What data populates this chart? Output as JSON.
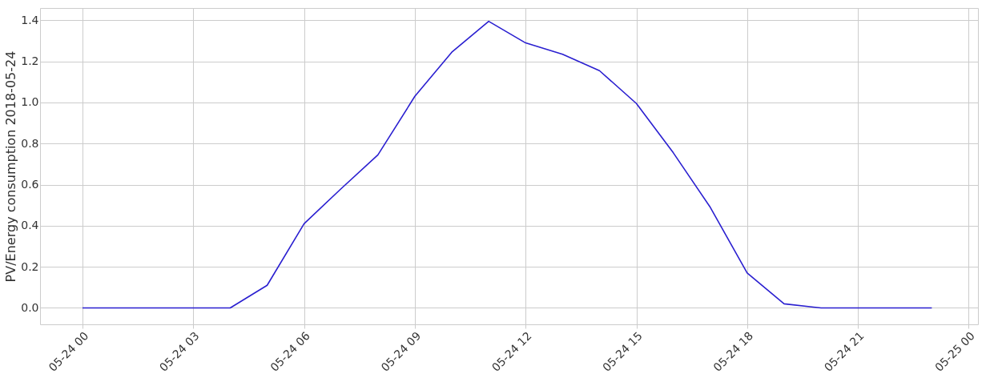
{
  "chart_data": {
    "type": "line",
    "ylabel": "PV/Energy consumption 2018-05-24",
    "x": [
      "2018-05-24T00:00",
      "2018-05-24T01:00",
      "2018-05-24T02:00",
      "2018-05-24T03:00",
      "2018-05-24T04:00",
      "2018-05-24T05:00",
      "2018-05-24T06:00",
      "2018-05-24T07:00",
      "2018-05-24T08:00",
      "2018-05-24T09:00",
      "2018-05-24T10:00",
      "2018-05-24T11:00",
      "2018-05-24T12:00",
      "2018-05-24T13:00",
      "2018-05-24T14:00",
      "2018-05-24T15:00",
      "2018-05-24T16:00",
      "2018-05-24T17:00",
      "2018-05-24T18:00",
      "2018-05-24T19:00",
      "2018-05-24T20:00",
      "2018-05-24T21:00",
      "2018-05-24T22:00",
      "2018-05-24T23:00"
    ],
    "series": [
      {
        "color": "#2a1fd0",
        "values": [
          0,
          0,
          0,
          0,
          0,
          0.11,
          0.41,
          0.58,
          0.745,
          1.03,
          1.245,
          1.395,
          1.29,
          1.235,
          1.155,
          0.995,
          0.755,
          0.49,
          0.17,
          0.02,
          0,
          0,
          0,
          0
        ]
      }
    ],
    "xlim": [
      "2018-05-23T22:51",
      "2018-05-25T00:15"
    ],
    "xticks": [
      {
        "value": "2018-05-24T00:00",
        "label": "05-24 00"
      },
      {
        "value": "2018-05-24T03:00",
        "label": "05-24 03"
      },
      {
        "value": "2018-05-24T06:00",
        "label": "05-24 06"
      },
      {
        "value": "2018-05-24T09:00",
        "label": "05-24 09"
      },
      {
        "value": "2018-05-24T12:00",
        "label": "05-24 12"
      },
      {
        "value": "2018-05-24T15:00",
        "label": "05-24 15"
      },
      {
        "value": "2018-05-24T18:00",
        "label": "05-24 18"
      },
      {
        "value": "2018-05-24T21:00",
        "label": "05-24 21"
      },
      {
        "value": "2018-05-25T00:00",
        "label": "05-25 00"
      }
    ],
    "ylim": [
      -0.08,
      1.46
    ],
    "yticks": [
      {
        "value": 0,
        "label": "0.0"
      },
      {
        "value": 0.2,
        "label": "0.2"
      },
      {
        "value": 0.4,
        "label": "0.4"
      },
      {
        "value": 0.6,
        "label": "0.6"
      },
      {
        "value": 0.8,
        "label": "0.8"
      },
      {
        "value": 1.0,
        "label": "1.0"
      },
      {
        "value": 1.2,
        "label": "1.2"
      },
      {
        "value": 1.4,
        "label": "1.4"
      }
    ],
    "grid": true,
    "marker": "none",
    "line_style": "solid"
  }
}
